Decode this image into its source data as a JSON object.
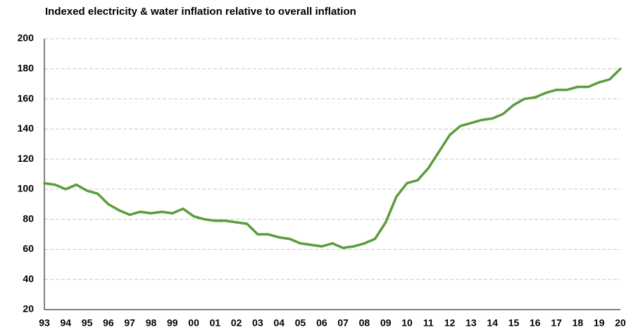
{
  "chart_data": {
    "type": "line",
    "title": "Indexed electricity & water inflation relative to overall inflation",
    "categories": [
      "93",
      null,
      "94",
      null,
      "95",
      null,
      "96",
      null,
      "97",
      null,
      "98",
      null,
      "99",
      null,
      "00",
      null,
      "01",
      null,
      "02",
      null,
      "03",
      null,
      "04",
      null,
      "05",
      null,
      "06",
      null,
      "07",
      null,
      "08",
      null,
      "09",
      null,
      "10",
      null,
      "11",
      null,
      "12",
      null,
      "13",
      null,
      "14",
      null,
      "15",
      null,
      "16",
      null,
      "17",
      null,
      "18",
      null,
      "19",
      null,
      "20"
    ],
    "series": [
      {
        "name": "Indexed electricity & water inflation",
        "color": "#5c9c3c",
        "values": [
          104,
          103,
          100,
          103,
          99,
          97,
          90,
          86,
          83,
          85,
          84,
          85,
          84,
          87,
          82,
          80,
          79,
          79,
          78,
          77,
          70,
          70,
          68,
          67,
          64,
          63,
          62,
          64,
          61,
          62,
          64,
          67,
          78,
          95,
          104,
          106,
          114,
          125,
          136,
          142,
          144,
          146,
          147,
          150,
          156,
          160,
          161,
          164,
          166,
          166,
          168,
          168,
          171,
          173,
          180
        ]
      }
    ],
    "ylim": [
      20,
      200
    ],
    "yticks": [
      20,
      40,
      60,
      80,
      100,
      120,
      140,
      160,
      180,
      200
    ],
    "grid": true
  }
}
